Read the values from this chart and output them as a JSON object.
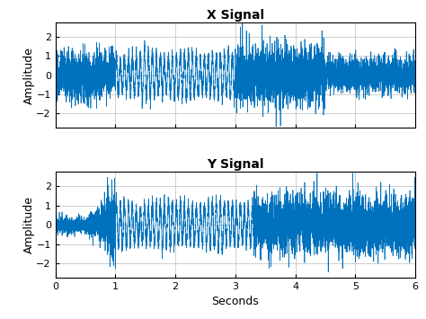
{
  "title_x": "X Signal",
  "title_y": "Y Signal",
  "xlabel": "Seconds",
  "ylabel": "Amplitude",
  "xlim": [
    0,
    6
  ],
  "ylim": [
    -2.75,
    2.75
  ],
  "yticks": [
    -2,
    -1,
    0,
    1,
    2
  ],
  "xticks": [
    0,
    1,
    2,
    3,
    4,
    5,
    6
  ],
  "line_color": "#0072BD",
  "line_width": 0.5,
  "fs": 1000,
  "duration": 6,
  "background_color": "#ffffff",
  "grid_color": "#b0b0b0",
  "title_fontsize": 10,
  "tick_fontsize": 8,
  "label_fontsize": 9
}
